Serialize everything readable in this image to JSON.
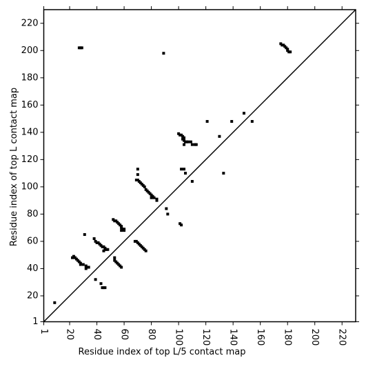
{
  "chart_data": {
    "type": "scatter",
    "xlabel": "Residue index of top L/5 contact map",
    "ylabel": "Residue index of top L contact map",
    "color": "#000000",
    "diagonal": true,
    "xlim": [
      1,
      230
    ],
    "ylim": [
      1,
      230
    ],
    "xticks": [
      1,
      20,
      40,
      60,
      80,
      100,
      120,
      140,
      160,
      180,
      200,
      220
    ],
    "yticks": [
      1,
      20,
      40,
      60,
      80,
      100,
      120,
      140,
      160,
      180,
      200,
      220
    ],
    "x": [
      27,
      28,
      29,
      89,
      175,
      176,
      177,
      178,
      179,
      180,
      180,
      181,
      182,
      100,
      101,
      102,
      103,
      104,
      103,
      104,
      105,
      106,
      107,
      104,
      109,
      110,
      112,
      113,
      121,
      139,
      148,
      154,
      130,
      102,
      104,
      105,
      70,
      70,
      69,
      70,
      71,
      72,
      73,
      74,
      75,
      76,
      77,
      78,
      79,
      80,
      81,
      80,
      82,
      84,
      84,
      110,
      91,
      92,
      101,
      102,
      52,
      53,
      54,
      55,
      56,
      57,
      58,
      58,
      59,
      60,
      60,
      58,
      31,
      68,
      69,
      70,
      71,
      72,
      73,
      74,
      75,
      76,
      38,
      39,
      40,
      41,
      42,
      43,
      44,
      45,
      46,
      46,
      47,
      48,
      45,
      22,
      23,
      24,
      25,
      26,
      27,
      28,
      28,
      30,
      32,
      33,
      32,
      34,
      53,
      53,
      54,
      55,
      56,
      57,
      58,
      39,
      43,
      44,
      45,
      46,
      9,
      133
    ],
    "y": [
      202,
      202,
      202,
      198,
      205,
      204,
      204,
      203,
      202,
      201,
      200,
      199,
      199,
      139,
      138,
      138,
      137,
      136,
      135,
      134,
      133,
      133,
      133,
      131,
      133,
      131,
      131,
      131,
      148,
      148,
      154,
      148,
      137,
      113,
      113,
      110,
      113,
      109,
      105,
      105,
      104,
      103,
      102,
      101,
      100,
      98,
      97,
      96,
      95,
      94,
      93,
      92,
      92,
      91,
      90,
      104,
      84,
      80,
      73,
      72,
      76,
      75,
      75,
      74,
      73,
      72,
      71,
      70,
      69,
      69,
      68,
      68,
      65,
      60,
      60,
      59,
      58,
      57,
      56,
      55,
      54,
      53,
      62,
      60,
      59,
      59,
      58,
      57,
      56,
      56,
      55,
      54,
      54,
      54,
      53,
      48,
      49,
      48,
      47,
      46,
      45,
      44,
      43,
      43,
      42,
      41,
      40,
      41,
      48,
      46,
      45,
      44,
      43,
      42,
      41,
      32,
      29,
      26,
      26,
      26,
      15,
      110
    ]
  }
}
